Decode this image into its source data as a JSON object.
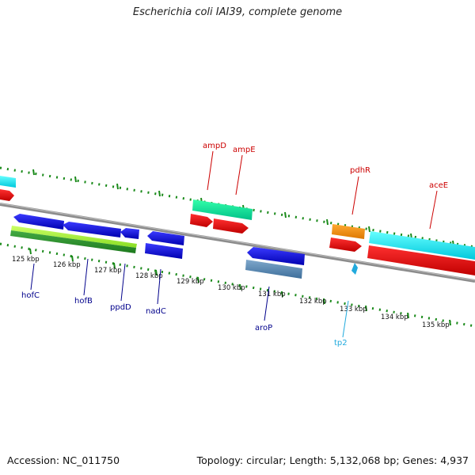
{
  "title": "Escherichia coli IAI39, complete genome",
  "footer": {
    "accession": "Accession: NC_011750",
    "summary": "Topology: circular; Length: 5,132,068 bp; Genes: 4,937"
  },
  "colors": {
    "axis": "#888888",
    "tick": "#1a8a1a",
    "red_label": "#cc0000",
    "blue_label": "#00008b",
    "cyan_label": "#22aadd"
  },
  "ticks": [
    {
      "label": "125 kbp"
    },
    {
      "label": "126 kbp"
    },
    {
      "label": "127 kbp"
    },
    {
      "label": "128 kbp"
    },
    {
      "label": "129 kbp"
    },
    {
      "label": "130 kbp"
    },
    {
      "label": "131 kbp"
    },
    {
      "label": "132 kbp"
    },
    {
      "label": "133 kbp"
    },
    {
      "label": "134 kbp"
    },
    {
      "label": "135 kbp"
    }
  ],
  "gene_labels": {
    "ampD": "ampD",
    "ampE": "ampE",
    "pdhR": "pdhR",
    "aceE": "aceE",
    "hofC": "hofC",
    "hofB": "hofB",
    "ppdD": "ppdD",
    "nadC": "nadC",
    "aroP": "aroP",
    "tp2": "tp2"
  }
}
